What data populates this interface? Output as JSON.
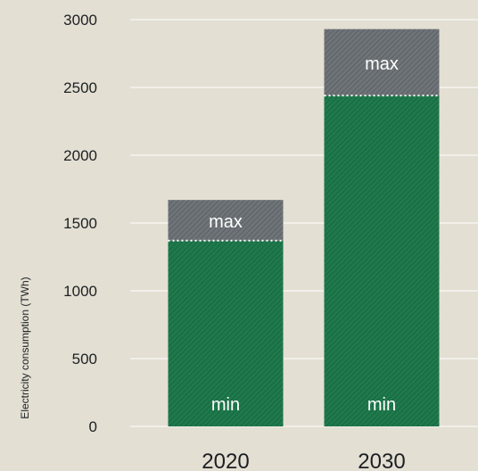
{
  "chart_data": {
    "type": "bar",
    "stacked": true,
    "categories": [
      "2020",
      "2030"
    ],
    "series": [
      {
        "name": "min",
        "values": [
          1370,
          2440
        ]
      },
      {
        "name": "max",
        "values": [
          300,
          490
        ]
      }
    ],
    "ylabel": "Electricity consumption (TWh)",
    "ylim": [
      0,
      3000
    ],
    "yticks": [
      "0",
      "500",
      "1000",
      "1500",
      "2000",
      "2500",
      "3000"
    ],
    "grid": true,
    "colors": {
      "min": "#1e7a4c",
      "max": "#6f7479",
      "background": "#e3dfd3"
    }
  }
}
